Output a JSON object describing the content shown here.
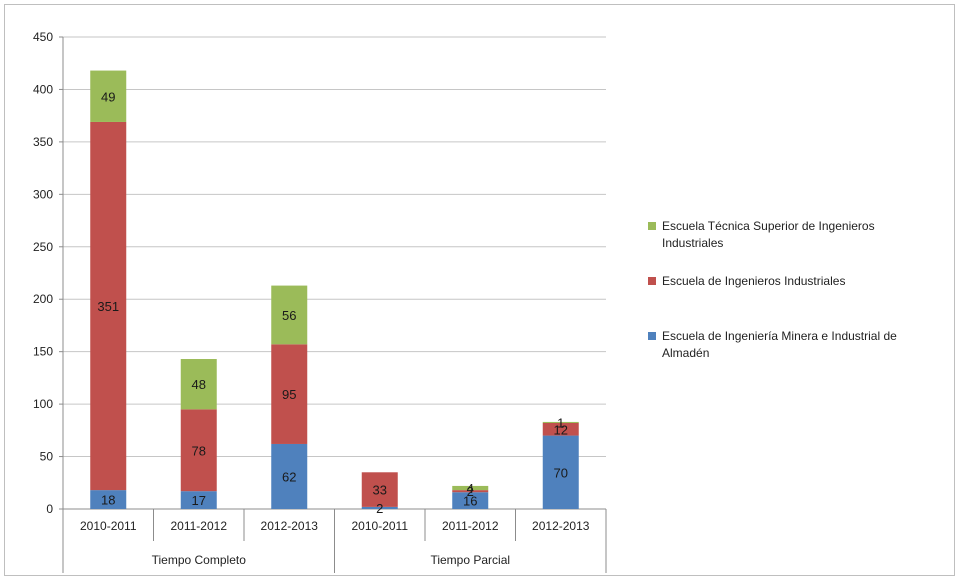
{
  "chart_data": {
    "type": "bar",
    "stacked": true,
    "title": "",
    "xlabel": "",
    "ylabel": "",
    "ylim": [
      0,
      450
    ],
    "yticks": [
      0,
      50,
      100,
      150,
      200,
      250,
      300,
      350,
      400,
      450
    ],
    "grid": true,
    "legend_position": "right",
    "groups": [
      {
        "label": "Tiempo Completo",
        "categories": [
          "2010-2011",
          "2011-2012",
          "2012-2013"
        ]
      },
      {
        "label": "Tiempo Parcial",
        "categories": [
          "2010-2011",
          "2011-2012",
          "2012-2013"
        ]
      }
    ],
    "categories": [
      "2010-2011",
      "2011-2012",
      "2012-2013",
      "2010-2011",
      "2011-2012",
      "2012-2013"
    ],
    "series": [
      {
        "name": "Escuela de Ingeniería Minera e Industrial de Almadén",
        "color": "#4f81bd",
        "values": [
          18,
          17,
          62,
          2,
          16,
          70
        ]
      },
      {
        "name": "Escuela de Ingenieros Industriales",
        "color": "#c0504d",
        "values": [
          351,
          78,
          95,
          33,
          2,
          12
        ]
      },
      {
        "name": "Escuela Técnica Superior de Ingenieros Industriales",
        "color": "#9bbb59",
        "values": [
          49,
          48,
          56,
          0,
          4,
          1
        ]
      }
    ],
    "legend_order": [
      2,
      1,
      0
    ]
  }
}
